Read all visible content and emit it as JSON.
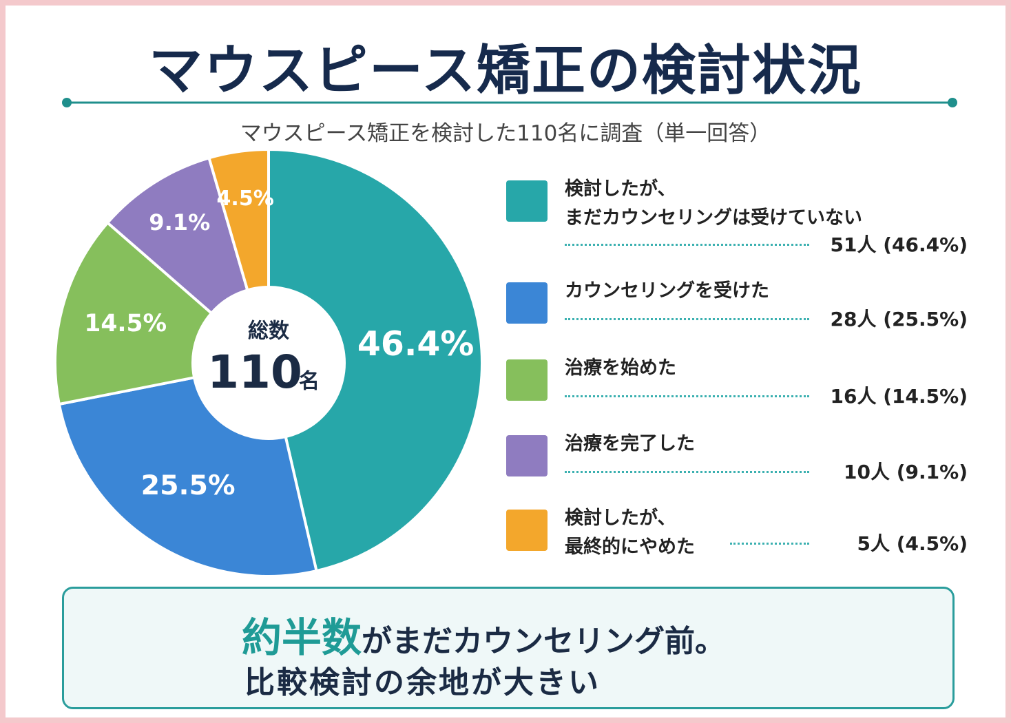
{
  "chart_data": {
    "type": "donut",
    "title": "マウスピース矯正の検討状況",
    "subtitle": "マウスピース矯正を検討した110名に調査（単一回答）",
    "center_label": "総数",
    "center_value": 110,
    "center_unit": "名",
    "categories": [
      "検討したが、\nまだカウンセリングは受けていない",
      "カウンセリングを受けた",
      "治療を始めた",
      "治療を完了した",
      "検討したが、\n最終的にやめた"
    ],
    "values": [
      46.4,
      25.5,
      14.5,
      9.1,
      4.5
    ],
    "value_labels": [
      "46.4%",
      "25.5%",
      "14.5%",
      "9.1%",
      "4.5%"
    ],
    "legend_values": [
      "51人 (46.4%)",
      "28人 (25.5%)",
      "16人 (14.5%)",
      "10人 (9.1%)",
      "5人 (4.5%)"
    ],
    "colors": [
      "#27a7a9",
      "#3b86d6",
      "#86bf5c",
      "#8f7cc0",
      "#f3a72c"
    ],
    "annotation": {
      "highlight": "約半数",
      "line1": "がまだカウンセリング前。",
      "line2": "比較検討の余地が大きい"
    }
  }
}
